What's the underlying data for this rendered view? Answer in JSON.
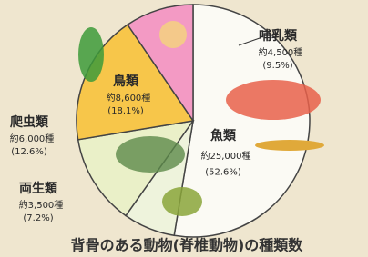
{
  "chart_data": {
    "type": "pie",
    "title": "背骨のある動物(脊椎動物)の種類数",
    "categories": [
      "魚類",
      "両生類",
      "爬虫類",
      "鳥類",
      "哺乳類"
    ],
    "counts": [
      "約25,000種",
      "約3,500種",
      "約6,000種",
      "約8,600種",
      "約4,500種"
    ],
    "values": [
      52.6,
      7.2,
      12.6,
      18.1,
      9.5
    ],
    "value_labels": [
      "(52.6%)",
      "(7.2%)",
      "(12.6%)",
      "(18.1%)",
      "(9.5%)"
    ],
    "colors": [
      "#fbfaf4",
      "#eef3dc",
      "#eaf0c8",
      "#f7c64a",
      "#f39ac4"
    ]
  }
}
